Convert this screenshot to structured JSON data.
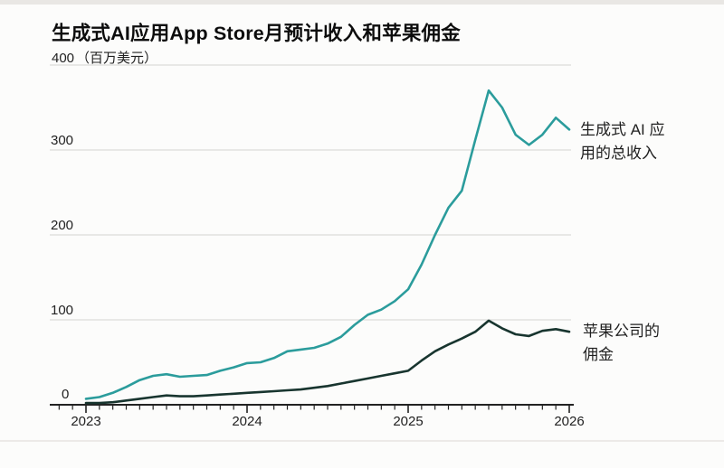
{
  "header": {
    "title": "生成式AI应用App Store月预计收入和苹果佣金"
  },
  "colors": {
    "revenue_line": "#2b9c9c",
    "commission_line": "#18352f",
    "axis": "#222222",
    "gridline": "#dcdbd9",
    "background": "#fcfcfb"
  },
  "chart_data": {
    "type": "line",
    "title": "生成式AI应用App Store月预计收入和苹果佣金",
    "unit_label": "（百万美元）",
    "ylabel": "",
    "xlabel": "",
    "ylim": [
      0,
      400
    ],
    "grid": true,
    "legend_position": "right-annotations",
    "y_ticks": [
      400,
      300,
      200,
      100,
      0
    ],
    "y_tick_labels": [
      "400",
      "300",
      "200",
      "100",
      "0"
    ],
    "x_tick_labels": [
      "2023",
      "2024",
      "2025",
      "2026"
    ],
    "x_months": [
      "2023-01",
      "2023-02",
      "2023-03",
      "2023-04",
      "2023-05",
      "2023-06",
      "2023-07",
      "2023-08",
      "2023-09",
      "2023-10",
      "2023-11",
      "2023-12",
      "2024-01",
      "2024-02",
      "2024-03",
      "2024-04",
      "2024-05",
      "2024-06",
      "2024-07",
      "2024-08",
      "2024-09",
      "2024-10",
      "2024-11",
      "2024-12",
      "2025-01",
      "2025-02",
      "2025-03",
      "2025-04",
      "2025-05",
      "2025-06",
      "2025-07",
      "2025-08",
      "2025-09",
      "2025-10",
      "2025-11",
      "2025-12",
      "2026-01"
    ],
    "series": [
      {
        "name": "生成式 AI 应用的总收入",
        "color": "#2b9c9c",
        "values": [
          7,
          9,
          14,
          21,
          29,
          34,
          36,
          33,
          34,
          35,
          40,
          44,
          49,
          50,
          55,
          63,
          65,
          67,
          72,
          80,
          94,
          106,
          112,
          122,
          136,
          165,
          200,
          232,
          252,
          312,
          370,
          350,
          318,
          306,
          318,
          338,
          324
        ]
      },
      {
        "name": "苹果公司的佣金",
        "color": "#18352f",
        "values": [
          2,
          2,
          3,
          5,
          7,
          9,
          11,
          10,
          10,
          11,
          12,
          13,
          14,
          15,
          16,
          17,
          18,
          20,
          22,
          25,
          28,
          31,
          34,
          37,
          40,
          52,
          63,
          71,
          78,
          86,
          99,
          90,
          83,
          81,
          87,
          89,
          86
        ]
      }
    ],
    "annotations": [
      {
        "target": "revenue-series",
        "lines": [
          "生成式 AI 应",
          "用的总收入"
        ]
      },
      {
        "target": "commission-series",
        "lines": [
          "苹果公司的",
          "佣金"
        ]
      }
    ]
  }
}
